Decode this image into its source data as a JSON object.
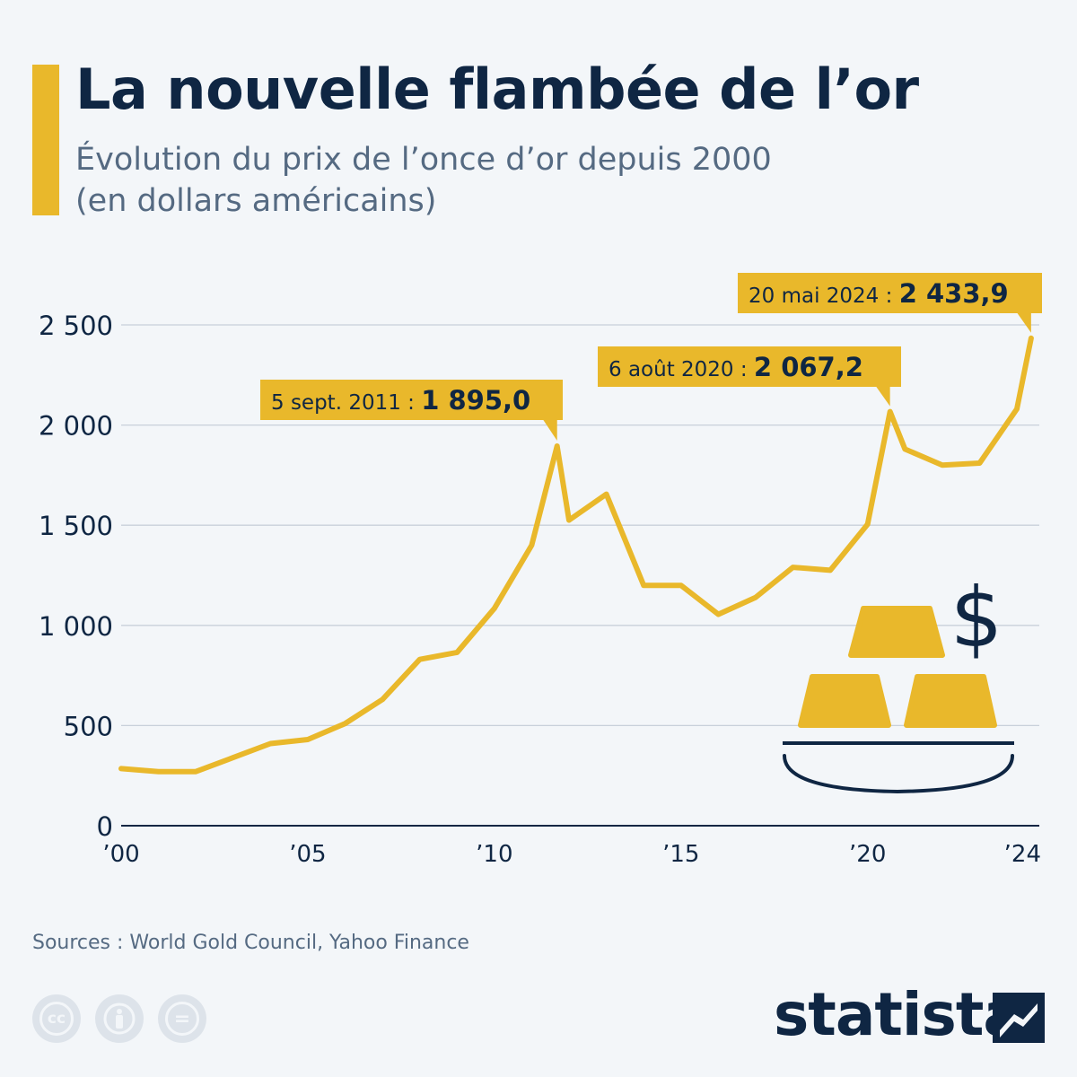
{
  "header": {
    "title": "La nouvelle flambée de l’or",
    "subtitle_line1": "Évolution du prix de l’once d’or depuis 2000",
    "subtitle_line2": "(en dollars américains)"
  },
  "colors": {
    "accent": "#e9b82b",
    "title": "#0f2643",
    "text_muted": "#556a82",
    "grid": "#c8d0da",
    "background": "#f3f6f9"
  },
  "chart_data": {
    "type": "line",
    "title": "La nouvelle flambée de l’or",
    "xlabel": "",
    "ylabel": "",
    "xlim": [
      2000,
      2024.6
    ],
    "ylim": [
      0,
      2600
    ],
    "grid": true,
    "y_ticks": [
      0,
      500,
      1000,
      1500,
      2000,
      2500
    ],
    "y_tick_labels": [
      "0",
      "500",
      "1 000",
      "1 500",
      "2 000",
      "2 500"
    ],
    "x_ticks": [
      2000,
      2005,
      2010,
      2015,
      2020,
      2024
    ],
    "x_tick_labels": [
      "’00",
      "’05",
      "’10",
      "’15",
      "’20",
      "’24"
    ],
    "series": [
      {
        "x": [
          2000,
          2001,
          2002,
          2003,
          2004,
          2005,
          2006,
          2007,
          2008,
          2009,
          2010,
          2011,
          2011.68,
          2012,
          2013,
          2014,
          2015,
          2016,
          2017,
          2018,
          2019,
          2020,
          2020.6,
          2021,
          2022,
          2023,
          2024,
          2024.38
        ],
        "y": [
          285,
          270,
          270,
          340,
          410,
          430,
          510,
          630,
          830,
          865,
          1085,
          1400,
          1895,
          1525,
          1655,
          1200,
          1200,
          1055,
          1140,
          1290,
          1275,
          1505,
          2067.2,
          1880,
          1800,
          1810,
          2080,
          2433.9
        ]
      }
    ],
    "annotations": [
      {
        "x": 2011.68,
        "y": 1895.0,
        "date": "5 sept. 2011 :",
        "value": "1 895,0"
      },
      {
        "x": 2020.6,
        "y": 2067.2,
        "date": "6 août 2020 :",
        "value": "2 067,2"
      },
      {
        "x": 2024.38,
        "y": 2433.9,
        "date": "20 mai 2024 :",
        "value": "2 433,9"
      }
    ]
  },
  "illustration": {
    "icon": "gold-bars-icon",
    "symbol": "$"
  },
  "footer": {
    "source": "Sources : World Gold Council, Yahoo Finance",
    "license_icons": [
      "cc-icon",
      "attribution-icon",
      "no-derivatives-icon"
    ],
    "brand": "statista",
    "cc_glyph": "cc",
    "equals_glyph": "="
  }
}
